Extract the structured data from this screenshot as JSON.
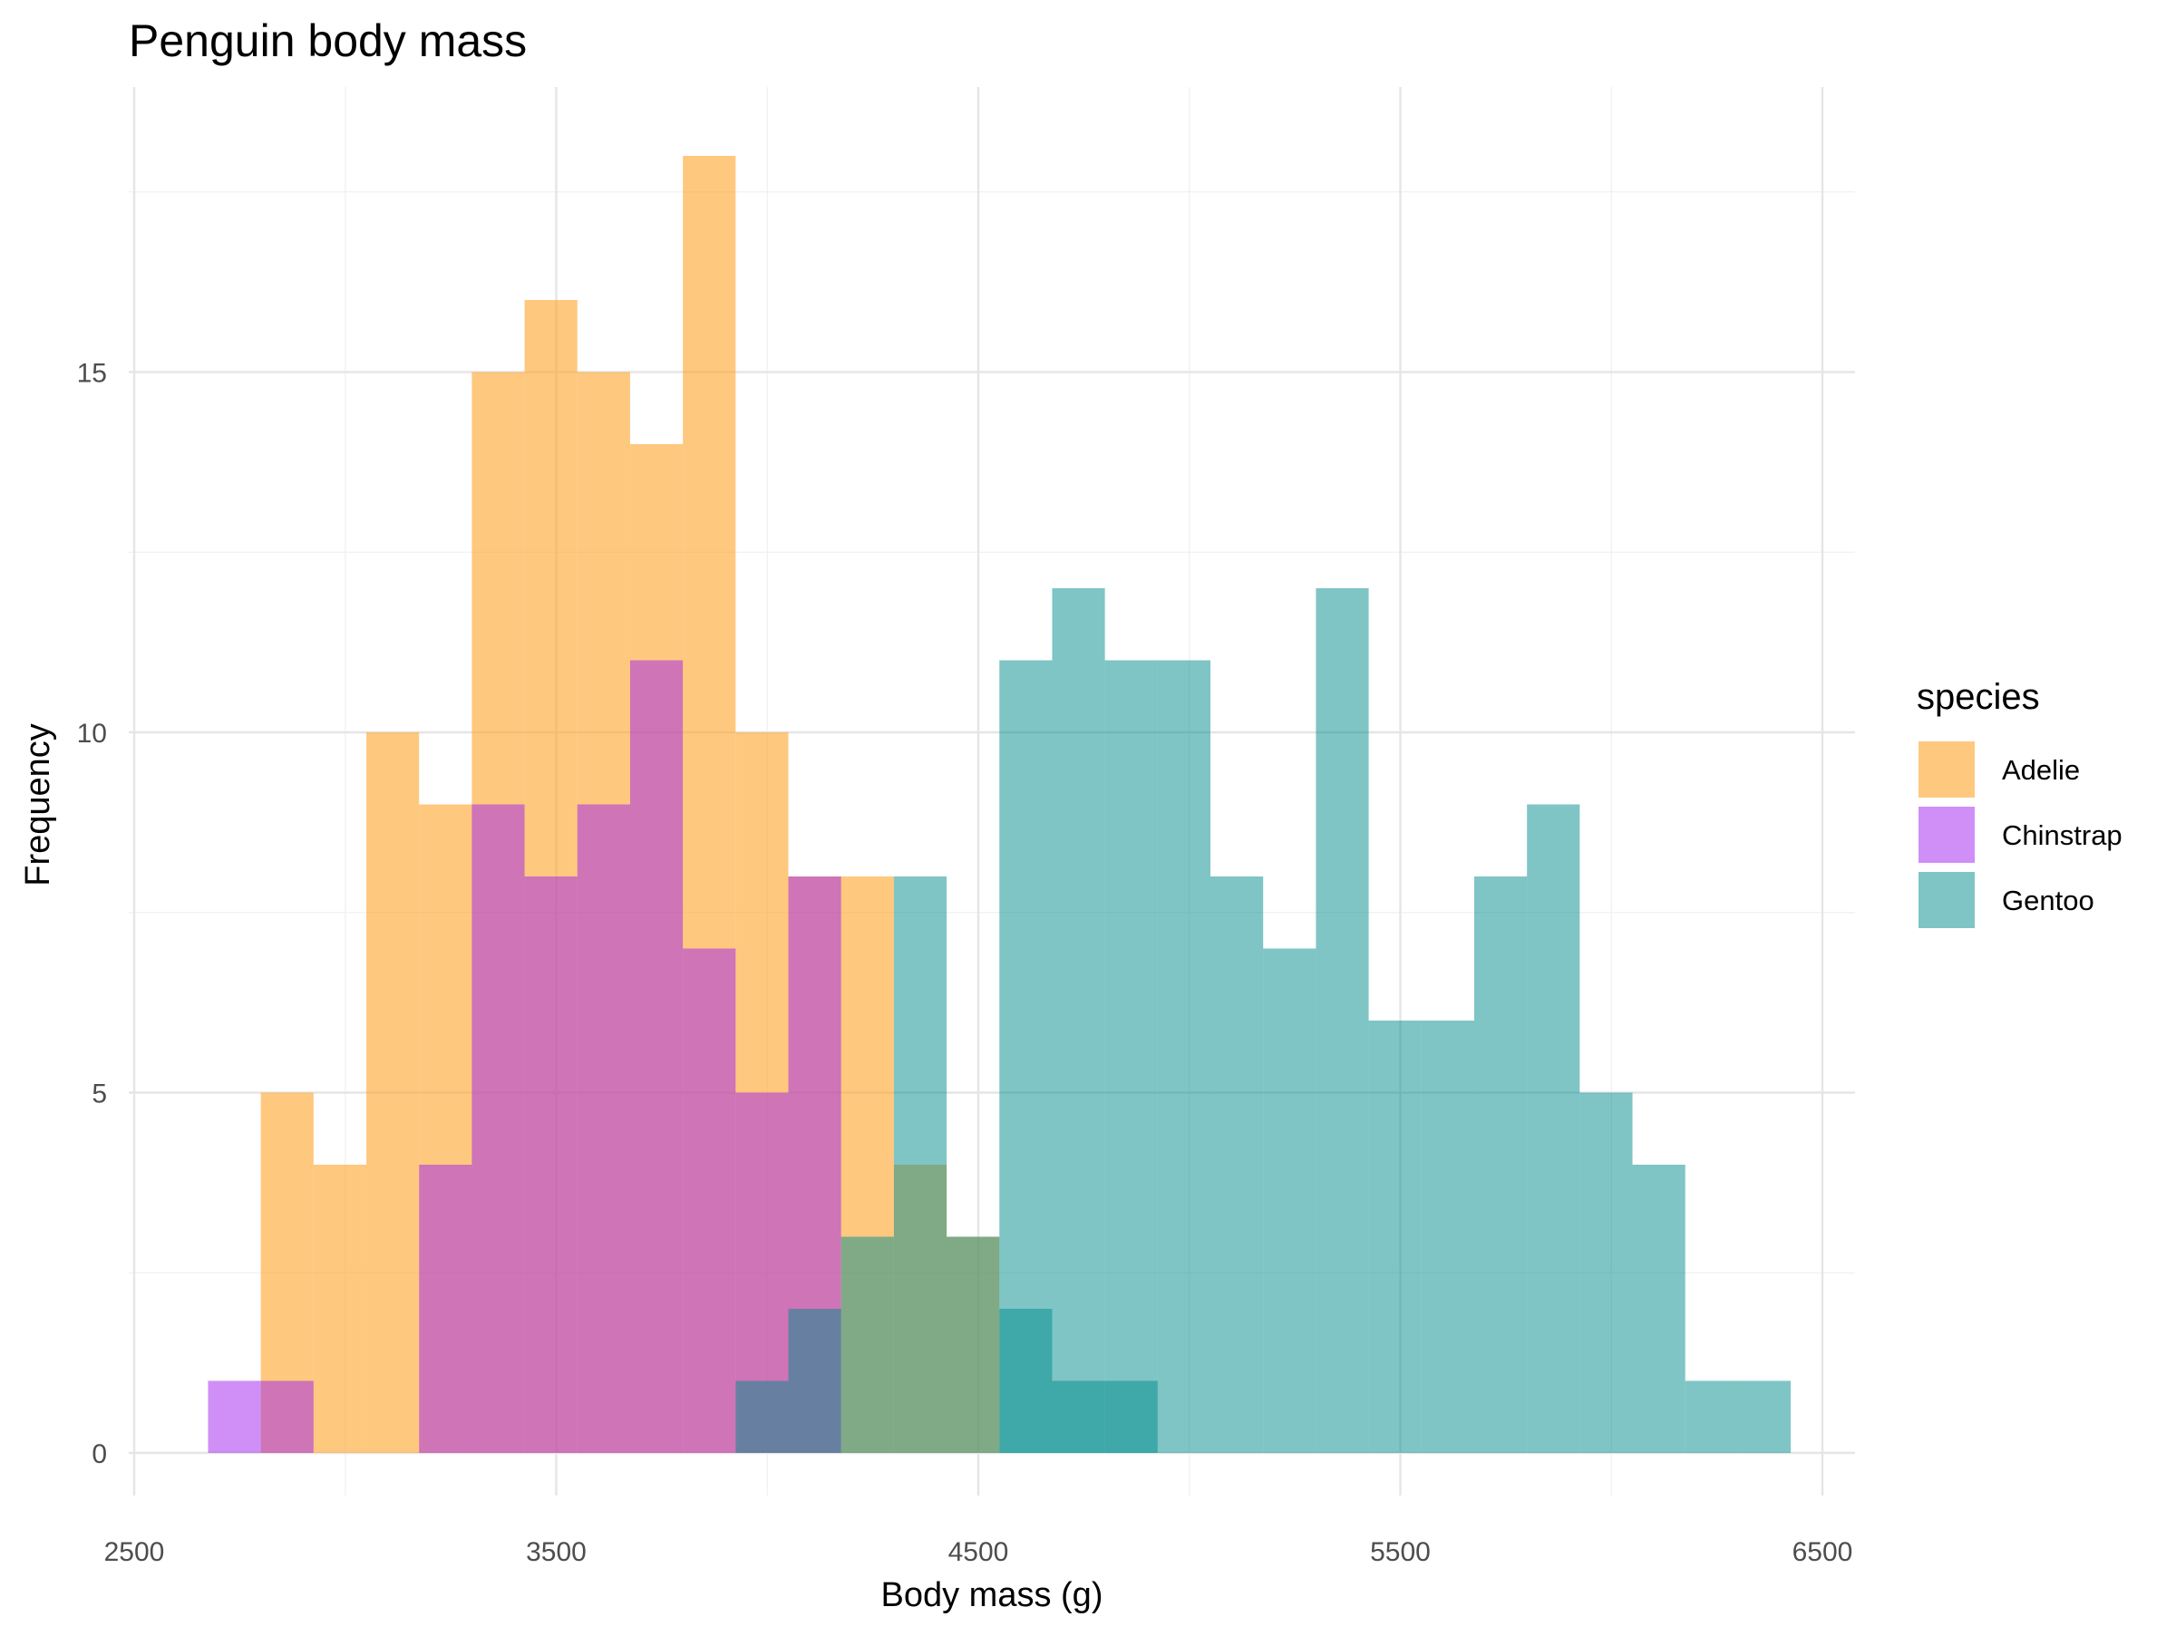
{
  "chart_data": {
    "type": "histogram",
    "title": "Penguin body mass",
    "xlabel": "Body mass (g)",
    "ylabel": "Frequency",
    "xlim": [
      2500,
      6500
    ],
    "ylim": [
      0,
      18
    ],
    "x_ticks": [
      2500,
      3500,
      4500,
      5500,
      6500
    ],
    "y_ticks": [
      0,
      5,
      10,
      15
    ],
    "grid": true,
    "bin_edges": [
      2675,
      2800,
      2925,
      3050,
      3175,
      3300,
      3425,
      3550,
      3675,
      3800,
      3925,
      4050,
      4175,
      4300,
      4425,
      4550,
      4675,
      4800,
      4925,
      5050,
      5175,
      5300,
      5425,
      5550,
      5675,
      5800,
      5925,
      6050,
      6175,
      6300,
      6425
    ],
    "legend": {
      "title": "species",
      "position": "right"
    },
    "series": [
      {
        "name": "Adelie",
        "color": "#FFA630",
        "opacity": 0.62,
        "values": [
          0,
          5,
          4,
          10,
          9,
          15,
          16,
          15,
          14,
          18,
          10,
          8,
          8,
          4,
          3,
          0,
          0,
          0,
          0,
          0,
          0,
          0,
          0,
          0,
          0,
          0,
          0,
          0,
          0,
          0
        ]
      },
      {
        "name": "Chinstrap",
        "color": "#A020F0",
        "opacity": 0.5,
        "values": [
          1,
          1,
          0,
          0,
          4,
          9,
          8,
          9,
          11,
          7,
          5,
          8,
          0,
          0,
          0,
          0,
          0,
          0,
          0,
          0,
          0,
          0,
          0,
          0,
          0,
          0,
          0,
          0,
          0,
          0
        ]
      },
      {
        "name": "Gentoo",
        "color": "#008B8B",
        "opacity": 0.5,
        "values": [
          0,
          0,
          0,
          0,
          0,
          0,
          0,
          0,
          0,
          0,
          1,
          2,
          3,
          8,
          3,
          2,
          1,
          1,
          0,
          0,
          0,
          0,
          0,
          0,
          0,
          0,
          0,
          0,
          0,
          0
        ]
      },
      {
        "name": "Gentoo",
        "color": "#008B8B",
        "opacity": 0.5,
        "values": [
          0,
          0,
          0,
          0,
          0,
          0,
          0,
          0,
          0,
          0,
          0,
          0,
          0,
          0,
          0,
          11,
          12,
          11,
          11,
          8,
          7,
          12,
          6,
          6,
          8,
          9,
          5,
          4,
          1,
          0
        ]
      },
      {
        "name": "Gentoo",
        "color": "#008B8B",
        "opacity": 0.5,
        "values": [
          0,
          0,
          0,
          0,
          0,
          0,
          0,
          0,
          0,
          0,
          0,
          0,
          0,
          0,
          0,
          0,
          0,
          0,
          0,
          0,
          0,
          0,
          0,
          0,
          0,
          0,
          0,
          0,
          0,
          1
        ]
      }
    ],
    "legend_items": [
      {
        "label": "Adelie",
        "color": "#FFA630",
        "opacity": 0.62
      },
      {
        "label": "Chinstrap",
        "color": "#A020F0",
        "opacity": 0.5
      },
      {
        "label": "Gentoo",
        "color": "#008B8B",
        "opacity": 0.5
      }
    ]
  }
}
